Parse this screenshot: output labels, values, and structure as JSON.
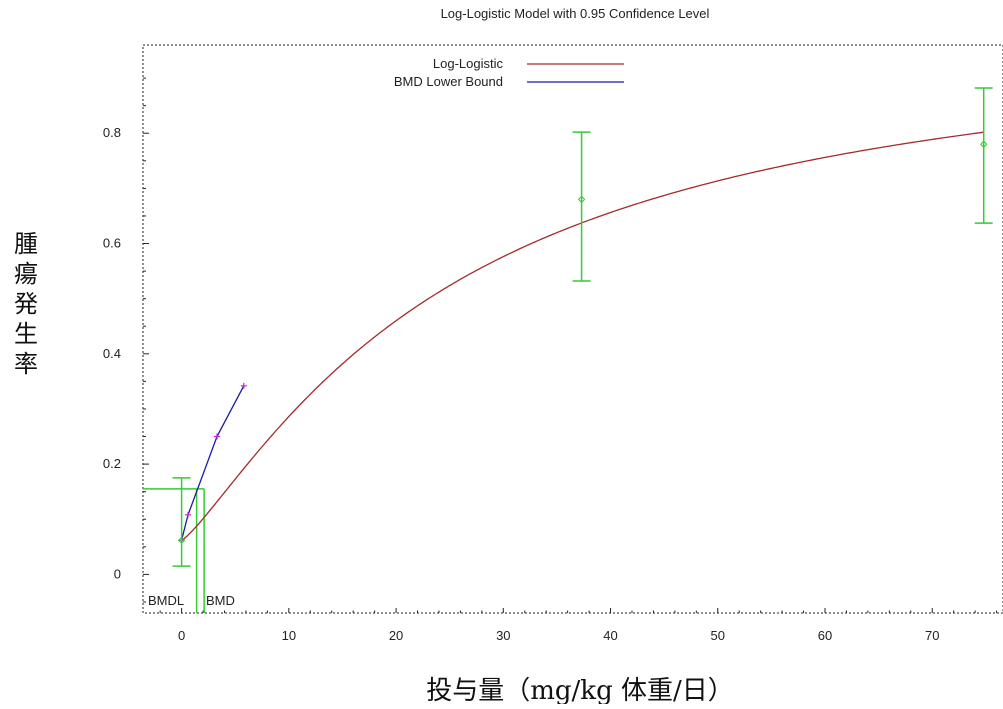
{
  "chart_data": {
    "type": "line",
    "title": "Log-Logistic Model with 0.95 Confidence Level",
    "xlabel": "投与量（mg/kg 体重/日）",
    "ylabel": "腫瘍発生率",
    "xlim": [
      -3.6,
      76.6
    ],
    "ylim": [
      -0.07,
      0.96
    ],
    "x_ticks": [
      0,
      10,
      20,
      30,
      40,
      50,
      60,
      70
    ],
    "y_ticks": [
      0,
      0.2,
      0.4,
      0.6,
      0.8
    ],
    "x_tick_labels": [
      "0",
      "10",
      "20",
      "30",
      "40",
      "50",
      "60",
      "70"
    ],
    "y_tick_labels": [
      "0",
      "0.2",
      "0.4",
      "0.6",
      "0.8"
    ],
    "legend_position": "top-center",
    "grid": false,
    "series": [
      {
        "name": "Log-Logistic",
        "color": "#a52a2a",
        "model": {
          "background": 0.062,
          "intercept": -3.99,
          "slope": 1.23
        },
        "x_range": [
          0,
          74.8
        ]
      },
      {
        "name": "BMD Lower Bound",
        "color": "#1a1aa8",
        "x": [
          0,
          0.6,
          3.3,
          5.8
        ],
        "y": [
          0.062,
          0.108,
          0.25,
          0.342
        ]
      }
    ],
    "observed": {
      "color": "#33cc33",
      "points": [
        {
          "x": 0,
          "y": 0.062,
          "lower": 0.015,
          "upper": 0.175
        },
        {
          "x": 37.3,
          "y": 0.68,
          "lower": 0.532,
          "upper": 0.802
        },
        {
          "x": 74.8,
          "y": 0.78,
          "lower": 0.637,
          "upper": 0.882
        }
      ]
    },
    "bmd": {
      "level": 0.155,
      "bmdl": 1.4,
      "bmd": 2.1,
      "bmdl_label": "BMDL",
      "bmd_label": "BMD"
    }
  }
}
